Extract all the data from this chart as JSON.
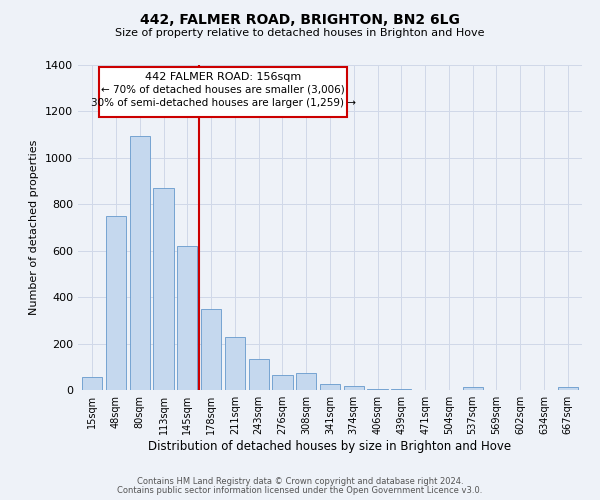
{
  "title": "442, FALMER ROAD, BRIGHTON, BN2 6LG",
  "subtitle": "Size of property relative to detached houses in Brighton and Hove",
  "xlabel": "Distribution of detached houses by size in Brighton and Hove",
  "ylabel": "Number of detached properties",
  "bar_labels": [
    "15sqm",
    "48sqm",
    "80sqm",
    "113sqm",
    "145sqm",
    "178sqm",
    "211sqm",
    "243sqm",
    "276sqm",
    "308sqm",
    "341sqm",
    "374sqm",
    "406sqm",
    "439sqm",
    "471sqm",
    "504sqm",
    "537sqm",
    "569sqm",
    "602sqm",
    "634sqm",
    "667sqm"
  ],
  "bar_values": [
    55,
    750,
    1095,
    870,
    620,
    348,
    228,
    133,
    65,
    72,
    25,
    18,
    5,
    5,
    0,
    0,
    12,
    0,
    0,
    0,
    12
  ],
  "bar_color": "#c5d8ee",
  "bar_edgecolor": "#6699cc",
  "marker_label": "442 FALMER ROAD: 156sqm",
  "annotation_line1": "← 70% of detached houses are smaller (3,006)",
  "annotation_line2": "30% of semi-detached houses are larger (1,259) →",
  "marker_color": "#cc0000",
  "box_edgecolor": "#cc0000",
  "ylim": [
    0,
    1400
  ],
  "yticks": [
    0,
    200,
    400,
    600,
    800,
    1000,
    1200,
    1400
  ],
  "footer1": "Contains HM Land Registry data © Crown copyright and database right 2024.",
  "footer2": "Contains public sector information licensed under the Open Government Licence v3.0.",
  "bg_color": "#eef2f8",
  "plot_bg_color": "#eef2f8",
  "grid_color": "#d0d8e8"
}
